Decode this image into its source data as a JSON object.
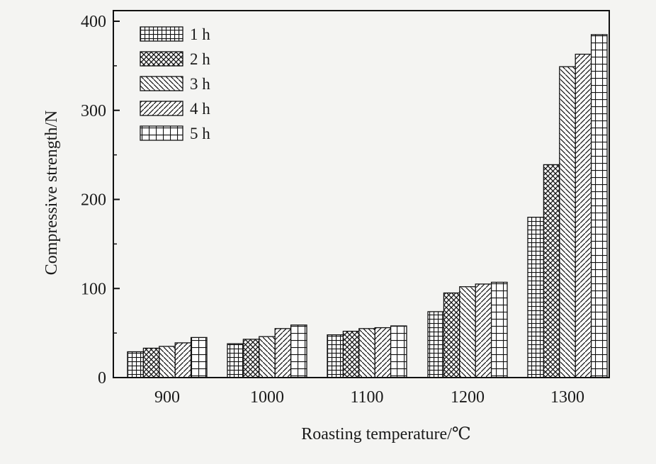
{
  "chart_data": {
    "type": "bar",
    "title": "",
    "xlabel": "Roasting temperature/℃",
    "ylabel": "Compressive strength/N",
    "categories": [
      "900",
      "1000",
      "1100",
      "1200",
      "1300"
    ],
    "ylim": [
      0,
      400
    ],
    "yticks": [
      0,
      100,
      200,
      300,
      400
    ],
    "grid": false,
    "legend_position": "top-left",
    "series": [
      {
        "name": "1 h",
        "pattern": "fine-grid",
        "values": [
          29,
          38,
          48,
          74,
          180
        ]
      },
      {
        "name": "2 h",
        "pattern": "crosshatch",
        "values": [
          33,
          43,
          52,
          95,
          239
        ]
      },
      {
        "name": "3 h",
        "pattern": "diagonal-back",
        "values": [
          35,
          46,
          55,
          102,
          349
        ]
      },
      {
        "name": "4 h",
        "pattern": "diagonal-forward",
        "values": [
          39,
          55,
          56,
          105,
          363
        ]
      },
      {
        "name": "5 h",
        "pattern": "coarse-grid",
        "values": [
          45,
          59,
          58,
          107,
          385
        ]
      }
    ]
  }
}
